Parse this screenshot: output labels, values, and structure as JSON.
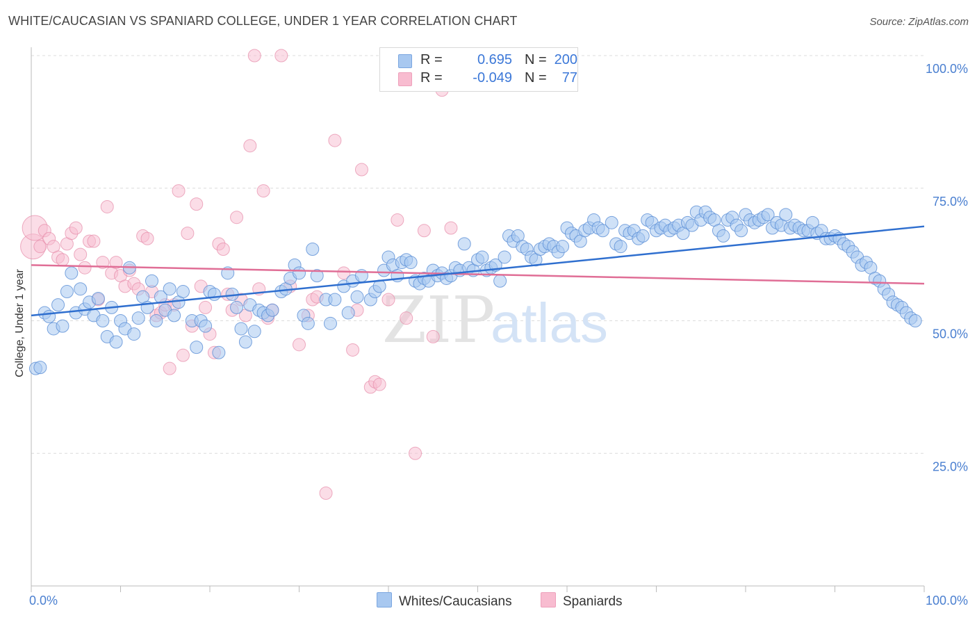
{
  "header": {
    "title": "WHITE/CAUCASIAN VS SPANIARD COLLEGE, UNDER 1 YEAR CORRELATION CHART",
    "source": "Source: ZipAtlas.com"
  },
  "watermark": {
    "zip": "ZIP",
    "atlas": "atlas"
  },
  "legend": {
    "rows": [
      {
        "r_label": "R =",
        "r_value": "0.695",
        "n_label": "N =",
        "n_value": "200",
        "color": "#a8c8f0"
      },
      {
        "r_label": "R =",
        "r_value": "-0.049",
        "n_label": "N =",
        "n_value": "77",
        "color": "#f8bcd0"
      }
    ]
  },
  "bottom_legend": {
    "whites": "Whites/Caucasians",
    "spaniards": "Spaniards"
  },
  "colors": {
    "blue_fill": "#a8c8f0",
    "blue_stroke": "#5b8fd6",
    "blue_line": "#2f6fcf",
    "pink_fill": "#f8bcd0",
    "pink_stroke": "#e58aa8",
    "pink_line": "#e06e96",
    "tick_text": "#4a7fd0",
    "grid": "#dcdcdc"
  },
  "chart_data": {
    "type": "scatter",
    "title": "WHITE/CAUCASIAN VS SPANIARD COLLEGE, UNDER 1 YEAR CORRELATION CHART",
    "xlabel": "",
    "ylabel": "College, Under 1 year",
    "xlim": [
      0,
      100
    ],
    "ylim": [
      0,
      100
    ],
    "x_tick_labels": [
      "0.0%",
      "100.0%"
    ],
    "y_ticks": [
      25,
      50,
      75,
      100
    ],
    "y_tick_labels": [
      "25.0%",
      "50.0%",
      "75.0%",
      "100.0%"
    ],
    "grid": true,
    "legend_position": "top-center",
    "series": [
      {
        "name": "Whites/Caucasians",
        "color": "#a8c8f0",
        "trend": {
          "x": [
            0,
            100
          ],
          "y": [
            51.0,
            67.8
          ]
        },
        "points": [
          [
            0.5,
            41
          ],
          [
            1,
            41.2
          ],
          [
            1.5,
            51.5
          ],
          [
            2,
            50.8
          ],
          [
            2.5,
            48.5
          ],
          [
            3,
            53
          ],
          [
            3.5,
            49
          ],
          [
            4,
            55.5
          ],
          [
            4.5,
            59
          ],
          [
            5,
            51.5
          ],
          [
            5.5,
            56
          ],
          [
            6,
            52.2
          ],
          [
            6.5,
            53.5
          ],
          [
            7,
            51
          ],
          [
            7.5,
            54.2
          ],
          [
            8,
            50
          ],
          [
            8.5,
            47
          ],
          [
            9,
            52.5
          ],
          [
            9.5,
            46
          ],
          [
            10,
            50
          ],
          [
            10.5,
            48.5
          ],
          [
            11,
            60
          ],
          [
            11.5,
            47.5
          ],
          [
            12,
            50.5
          ],
          [
            12.5,
            54.5
          ],
          [
            13,
            52.5
          ],
          [
            13.5,
            57.5
          ],
          [
            14,
            50
          ],
          [
            14.5,
            54.5
          ],
          [
            15,
            52
          ],
          [
            15.5,
            56
          ],
          [
            16,
            51
          ],
          [
            16.5,
            53.5
          ],
          [
            17,
            55.5
          ],
          [
            18,
            50
          ],
          [
            18.5,
            45
          ],
          [
            19,
            50
          ],
          [
            19.5,
            49
          ],
          [
            20,
            55.5
          ],
          [
            20.5,
            55
          ],
          [
            21,
            44
          ],
          [
            22,
            59
          ],
          [
            22.5,
            55
          ],
          [
            23,
            52.5
          ],
          [
            23.5,
            48.5
          ],
          [
            24,
            46
          ],
          [
            24.5,
            53
          ],
          [
            25,
            48
          ],
          [
            25.5,
            52
          ],
          [
            26,
            51.5
          ],
          [
            26.5,
            51
          ],
          [
            27,
            52
          ],
          [
            28,
            55.5
          ],
          [
            28.5,
            56
          ],
          [
            29,
            58
          ],
          [
            29.5,
            60.5
          ],
          [
            30,
            59
          ],
          [
            30.5,
            51
          ],
          [
            31,
            49.5
          ],
          [
            31.5,
            63.5
          ],
          [
            32,
            58.5
          ],
          [
            33,
            54
          ],
          [
            33.5,
            49.5
          ],
          [
            34,
            54
          ],
          [
            35,
            56.5
          ],
          [
            35.5,
            51.5
          ],
          [
            36,
            57.5
          ],
          [
            36.5,
            54.5
          ],
          [
            37,
            58.5
          ],
          [
            38,
            54
          ],
          [
            38.5,
            55.5
          ],
          [
            39,
            56.5
          ],
          [
            39.5,
            59.5
          ],
          [
            40,
            62
          ],
          [
            40.5,
            60.5
          ],
          [
            41,
            58.5
          ],
          [
            41.5,
            61
          ],
          [
            42,
            61.5
          ],
          [
            42.5,
            61
          ],
          [
            43,
            57.5
          ],
          [
            43.5,
            57
          ],
          [
            44,
            58
          ],
          [
            44.5,
            57.5
          ],
          [
            45,
            59.5
          ],
          [
            45.5,
            58.5
          ],
          [
            46,
            59
          ],
          [
            46.5,
            58
          ],
          [
            47,
            58.5
          ],
          [
            47.5,
            60
          ],
          [
            48,
            59.5
          ],
          [
            48.5,
            64.5
          ],
          [
            49,
            60
          ],
          [
            49.5,
            59.5
          ],
          [
            50,
            61.5
          ],
          [
            50.5,
            62
          ],
          [
            51,
            59.5
          ],
          [
            51.5,
            60
          ],
          [
            52,
            60.5
          ],
          [
            52.5,
            57.5
          ],
          [
            53,
            62
          ],
          [
            53.5,
            66
          ],
          [
            54,
            65
          ],
          [
            54.5,
            66
          ],
          [
            55,
            64
          ],
          [
            55.5,
            63.5
          ],
          [
            56,
            62
          ],
          [
            56.5,
            61.5
          ],
          [
            57,
            63.5
          ],
          [
            57.5,
            64
          ],
          [
            58,
            64.5
          ],
          [
            58.5,
            64
          ],
          [
            59,
            63
          ],
          [
            59.5,
            64
          ],
          [
            60,
            67.5
          ],
          [
            60.5,
            66.5
          ],
          [
            61,
            66
          ],
          [
            61.5,
            65
          ],
          [
            62,
            67
          ],
          [
            62.5,
            67.5
          ],
          [
            63,
            69
          ],
          [
            63.5,
            67.5
          ],
          [
            64,
            67
          ],
          [
            65,
            68.5
          ],
          [
            65.5,
            64.5
          ],
          [
            66,
            64
          ],
          [
            66.5,
            67
          ],
          [
            67,
            66.5
          ],
          [
            67.5,
            67
          ],
          [
            68,
            65.5
          ],
          [
            68.5,
            66
          ],
          [
            69,
            69
          ],
          [
            69.5,
            68.5
          ],
          [
            70,
            67
          ],
          [
            70.5,
            67.5
          ],
          [
            71,
            68
          ],
          [
            71.5,
            67
          ],
          [
            72,
            67.5
          ],
          [
            72.5,
            68
          ],
          [
            73,
            66.5
          ],
          [
            73.5,
            68.5
          ],
          [
            74,
            68
          ],
          [
            74.5,
            70.5
          ],
          [
            75,
            69
          ],
          [
            75.5,
            70.5
          ],
          [
            76,
            69.5
          ],
          [
            76.5,
            69
          ],
          [
            77,
            67
          ],
          [
            77.5,
            66
          ],
          [
            78,
            69
          ],
          [
            78.5,
            69.5
          ],
          [
            79,
            68
          ],
          [
            79.5,
            67
          ],
          [
            80,
            70
          ],
          [
            80.5,
            69
          ],
          [
            81,
            68.5
          ],
          [
            81.5,
            69
          ],
          [
            82,
            69.5
          ],
          [
            82.5,
            70
          ],
          [
            83,
            67.5
          ],
          [
            83.5,
            68.5
          ],
          [
            84,
            68
          ],
          [
            84.5,
            70
          ],
          [
            85,
            67.5
          ],
          [
            85.5,
            68
          ],
          [
            86,
            67.5
          ],
          [
            86.5,
            67
          ],
          [
            87,
            67
          ],
          [
            87.5,
            68.5
          ],
          [
            88,
            66.5
          ],
          [
            88.5,
            67
          ],
          [
            89,
            65.5
          ],
          [
            89.5,
            65.5
          ],
          [
            90,
            66
          ],
          [
            90.5,
            65.5
          ],
          [
            91,
            64.5
          ],
          [
            91.5,
            64
          ],
          [
            92,
            63
          ],
          [
            92.5,
            62
          ],
          [
            93,
            60.5
          ],
          [
            93.5,
            61
          ],
          [
            94,
            60
          ],
          [
            94.5,
            58
          ],
          [
            95,
            57.5
          ],
          [
            95.5,
            56
          ],
          [
            96,
            55
          ],
          [
            96.5,
            53.5
          ],
          [
            97,
            53
          ],
          [
            97.5,
            52.5
          ],
          [
            98,
            51.5
          ],
          [
            98.5,
            50.5
          ],
          [
            99,
            50
          ]
        ]
      },
      {
        "name": "Spaniards",
        "color": "#f8bcd0",
        "trend": {
          "x": [
            0,
            100
          ],
          "y": [
            60.5,
            57.0
          ]
        },
        "points": [
          [
            0.2,
            64,
            "L"
          ],
          [
            0.4,
            67.5,
            "L"
          ],
          [
            1,
            64
          ],
          [
            1.5,
            67
          ],
          [
            2,
            65.5
          ],
          [
            2.5,
            64
          ],
          [
            3,
            62
          ],
          [
            3.5,
            61.5
          ],
          [
            4,
            64.5
          ],
          [
            4.5,
            66.5
          ],
          [
            5,
            67.5
          ],
          [
            5.5,
            62.5
          ],
          [
            6,
            60
          ],
          [
            6.5,
            65
          ],
          [
            7,
            65
          ],
          [
            7.5,
            54
          ],
          [
            8,
            61
          ],
          [
            8.5,
            71.5
          ],
          [
            9,
            59
          ],
          [
            9.5,
            61
          ],
          [
            10,
            58.5
          ],
          [
            10.5,
            56.5
          ],
          [
            11,
            59.5
          ],
          [
            11.5,
            57
          ],
          [
            12,
            56
          ],
          [
            12.5,
            66
          ],
          [
            13,
            65.5
          ],
          [
            13.5,
            55.5
          ],
          [
            14,
            51
          ],
          [
            14.5,
            51.5
          ],
          [
            15,
            53
          ],
          [
            15.5,
            41
          ],
          [
            16,
            53
          ],
          [
            16.5,
            74.5
          ],
          [
            17,
            43.5
          ],
          [
            17.5,
            66.5
          ],
          [
            18,
            49
          ],
          [
            18.5,
            72
          ],
          [
            19,
            56.5
          ],
          [
            19.5,
            52.5
          ],
          [
            20,
            47.5
          ],
          [
            20.5,
            44
          ],
          [
            21,
            64.5
          ],
          [
            21.5,
            63.5
          ],
          [
            22,
            55
          ],
          [
            22.5,
            52
          ],
          [
            23,
            69.5
          ],
          [
            23.5,
            54
          ],
          [
            24,
            51
          ],
          [
            24.5,
            83
          ],
          [
            25,
            100
          ],
          [
            25.5,
            56
          ],
          [
            26,
            74.5
          ],
          [
            26.5,
            50.5
          ],
          [
            27,
            52
          ],
          [
            28,
            100
          ],
          [
            29,
            56.5
          ],
          [
            30,
            45.5
          ],
          [
            31,
            51
          ],
          [
            31.5,
            54
          ],
          [
            32,
            54.5
          ],
          [
            33,
            17.5
          ],
          [
            34,
            84
          ],
          [
            35,
            59
          ],
          [
            36,
            44.5
          ],
          [
            36.5,
            52
          ],
          [
            37,
            78.5
          ],
          [
            38,
            37.5
          ],
          [
            38.5,
            38.5
          ],
          [
            39,
            38
          ],
          [
            40,
            54
          ],
          [
            41,
            69
          ],
          [
            42,
            50.5
          ],
          [
            43,
            25
          ],
          [
            44,
            67
          ],
          [
            45,
            47
          ],
          [
            46,
            93.5
          ],
          [
            47,
            67.5
          ]
        ]
      }
    ]
  }
}
